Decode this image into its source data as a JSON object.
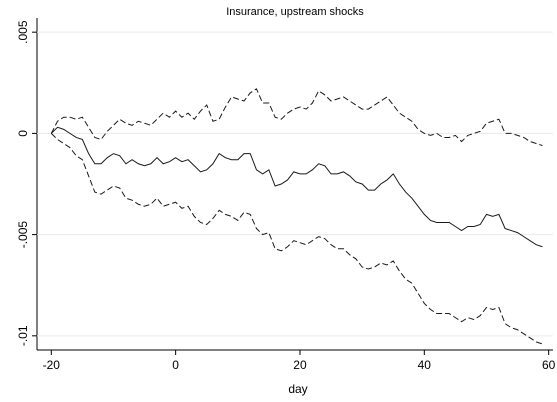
{
  "chart_data": {
    "type": "line",
    "title": "Insurance, upstream shocks",
    "x_label": "day",
    "x": [
      -20,
      -19,
      -18,
      -17,
      -16,
      -15,
      -14,
      -13,
      -12,
      -11,
      -10,
      -9,
      -8,
      -7,
      -6,
      -5,
      -4,
      -3,
      -2,
      -1,
      0,
      1,
      2,
      3,
      4,
      5,
      6,
      7,
      8,
      9,
      10,
      11,
      12,
      13,
      14,
      15,
      16,
      17,
      18,
      19,
      20,
      21,
      22,
      23,
      24,
      25,
      26,
      27,
      28,
      29,
      30,
      31,
      32,
      33,
      34,
      35,
      36,
      37,
      38,
      39,
      40,
      41,
      42,
      43,
      44,
      45,
      46,
      47,
      48,
      49,
      50,
      51,
      52,
      53,
      54,
      55,
      56,
      57,
      58,
      59
    ],
    "series": [
      {
        "color": "#1a1a1a",
        "dashed": false,
        "values": [
          0,
          0.0003,
          0.0002,
          0,
          -0.0002,
          -0.0003,
          -0.001,
          -0.0015,
          -0.0015,
          -0.0012,
          -0.001,
          -0.0011,
          -0.0015,
          -0.0013,
          -0.0015,
          -0.0016,
          -0.0015,
          -0.0012,
          -0.0015,
          -0.0014,
          -0.0012,
          -0.0014,
          -0.0013,
          -0.0016,
          -0.0019,
          -0.0018,
          -0.0015,
          -0.001,
          -0.0012,
          -0.0013,
          -0.0013,
          -0.001,
          -0.001,
          -0.0018,
          -0.002,
          -0.0018,
          -0.0026,
          -0.0025,
          -0.0023,
          -0.0019,
          -0.002,
          -0.002,
          -0.0018,
          -0.0015,
          -0.0016,
          -0.002,
          -0.002,
          -0.0019,
          -0.0021,
          -0.0024,
          -0.0025,
          -0.0028,
          -0.0028,
          -0.0025,
          -0.0023,
          -0.002,
          -0.0025,
          -0.0029,
          -0.0032,
          -0.0036,
          -0.004,
          -0.0043,
          -0.0044,
          -0.0044,
          -0.0044,
          -0.0046,
          -0.0048,
          -0.0046,
          -0.0046,
          -0.0045,
          -0.004,
          -0.0041,
          -0.004,
          -0.0047,
          -0.0048,
          -0.0049,
          -0.0051,
          -0.0053,
          -0.0055,
          -0.0056
        ]
      },
      {
        "color": "#1a1a1a",
        "dashed": true,
        "values": [
          0,
          0.0006,
          0.0008,
          0.0008,
          0.0007,
          0.0008,
          0.0003,
          -0.0002,
          -0.0003,
          0.0001,
          0.0004,
          0.0007,
          0.0005,
          0.0004,
          0.0006,
          0.0005,
          0.0004,
          0.0007,
          0.001,
          0.0008,
          0.0011,
          0.0008,
          0.001,
          0.0007,
          0.0011,
          0.0014,
          0.0006,
          0.0007,
          0.0013,
          0.0018,
          0.0017,
          0.0016,
          0.002,
          0.0022,
          0.0015,
          0.0015,
          0.0008,
          0.0007,
          0.001,
          0.0012,
          0.0013,
          0.0012,
          0.0015,
          0.0021,
          0.0019,
          0.0016,
          0.0017,
          0.0018,
          0.0016,
          0.0014,
          0.0012,
          0.0012,
          0.0014,
          0.0016,
          0.0018,
          0.0014,
          0.001,
          0.0008,
          0.0006,
          0.0002,
          0,
          -0.0001,
          0,
          -0.0002,
          -0.0002,
          -0.0001,
          -0.0004,
          -0.0001,
          0,
          0.0001,
          0.0005,
          0.0006,
          0.0007,
          0,
          0,
          -0.0001,
          -0.0002,
          -0.0004,
          -0.0005,
          -0.0006
        ]
      },
      {
        "color": "#1a1a1a",
        "dashed": true,
        "values": [
          0,
          -0.0003,
          -0.0005,
          -0.0007,
          -0.0011,
          -0.0013,
          -0.0021,
          -0.0029,
          -0.003,
          -0.0028,
          -0.0026,
          -0.0027,
          -0.0032,
          -0.0033,
          -0.0035,
          -0.0036,
          -0.0035,
          -0.0032,
          -0.0036,
          -0.0035,
          -0.0034,
          -0.0037,
          -0.0036,
          -0.0041,
          -0.0044,
          -0.0045,
          -0.0042,
          -0.0038,
          -0.004,
          -0.0041,
          -0.0043,
          -0.0039,
          -0.004,
          -0.0047,
          -0.005,
          -0.0049,
          -0.0057,
          -0.0058,
          -0.0056,
          -0.0053,
          -0.0054,
          -0.0055,
          -0.0053,
          -0.0051,
          -0.0052,
          -0.0055,
          -0.0057,
          -0.0057,
          -0.006,
          -0.0062,
          -0.0066,
          -0.0067,
          -0.0066,
          -0.0064,
          -0.0065,
          -0.0063,
          -0.0068,
          -0.0072,
          -0.0074,
          -0.0079,
          -0.0084,
          -0.0087,
          -0.0089,
          -0.0089,
          -0.0089,
          -0.0091,
          -0.0093,
          -0.0091,
          -0.0092,
          -0.009,
          -0.0086,
          -0.0087,
          -0.0086,
          -0.0094,
          -0.0096,
          -0.0097,
          -0.0099,
          -0.0101,
          -0.0103,
          -0.0104
        ]
      }
    ],
    "xlim": [
      -22.3,
      60.7
    ],
    "xticks": [
      -20,
      0,
      20,
      40,
      60
    ],
    "ylim": [
      -0.0107,
      0.0057
    ],
    "yticks": [
      {
        "value": -0.01,
        "label": "-.01"
      },
      {
        "value": -0.005,
        "label": "-.005"
      },
      0,
      {
        "value": 0.005,
        "label": ".005"
      }
    ],
    "grid": true
  }
}
